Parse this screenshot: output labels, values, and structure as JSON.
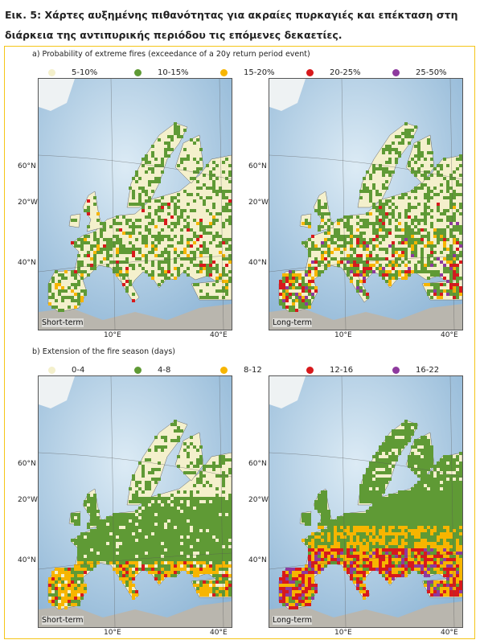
{
  "header": {
    "title": "Εικ. 5: Χάρτες αυξημένης πιθανότητας για ακραίες πυρκαγιές και επέκταση στη διάρκεια της αντιπυρικής περιόδου τις επόμενες δεκαετίες."
  },
  "grid_labels": {
    "lat_60": "60°N",
    "lon_20w": "20°W",
    "lat_40": "40°N",
    "lon_10e": "10°E",
    "lon_40e": "40°E"
  },
  "panels": [
    {
      "caption": "a) Probability of extreme fires (exceedance of a 20y return period event)",
      "legend": [
        {
          "label": "5-10%",
          "color": "#f4f0cc"
        },
        {
          "label": "10-15%",
          "color": "#5f9a35"
        },
        {
          "label": "15-20%",
          "color": "#f7b500"
        },
        {
          "label": "20-25%",
          "color": "#d7191c"
        },
        {
          "label": "25-50%",
          "color": "#8e3a9e"
        }
      ],
      "maps": [
        {
          "label": "Short-term"
        },
        {
          "label": "Long-term"
        }
      ]
    },
    {
      "caption": "b) Extension of the fire season (days)",
      "legend": [
        {
          "label": "0-4",
          "color": "#f4f0cc"
        },
        {
          "label": "4-8",
          "color": "#5f9a35"
        },
        {
          "label": "8-12",
          "color": "#f7b500"
        },
        {
          "label": "12-16",
          "color": "#d7191c"
        },
        {
          "label": "16-22",
          "color": "#8e3a9e"
        }
      ],
      "maps": [
        {
          "label": "Short-term"
        },
        {
          "label": "Long-term"
        }
      ]
    }
  ]
}
